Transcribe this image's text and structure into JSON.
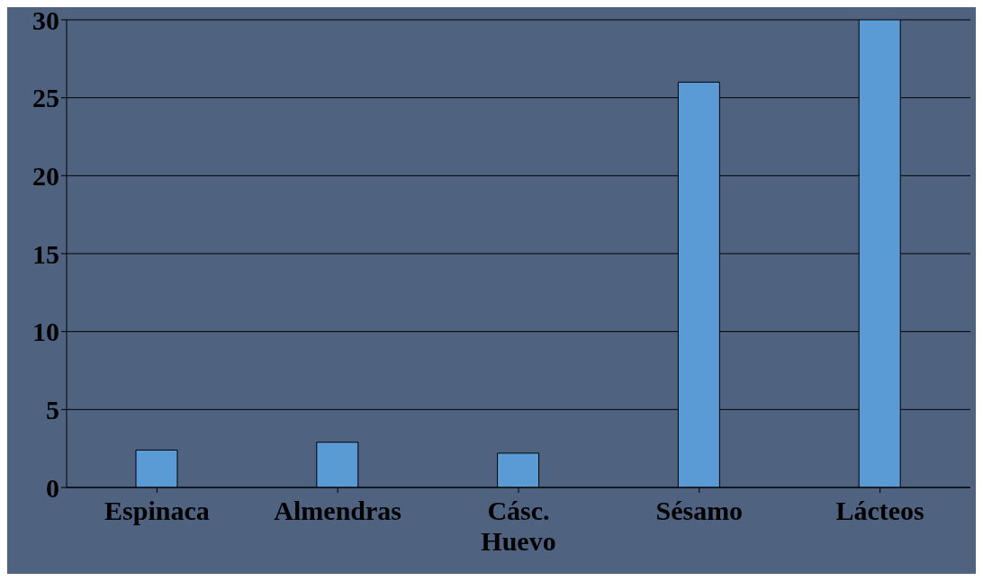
{
  "chart_data": {
    "type": "bar",
    "categories": [
      "Espinaca",
      "Almendras",
      "Cásc. Huevo",
      "Sésamo",
      "Lácteos"
    ],
    "values": [
      2.4,
      2.9,
      2.2,
      26,
      30
    ],
    "color": "#5b9bd5",
    "ylim": [
      0,
      30
    ],
    "yticks": [
      0,
      5,
      10,
      15,
      20,
      25,
      30
    ],
    "grid": "y"
  }
}
